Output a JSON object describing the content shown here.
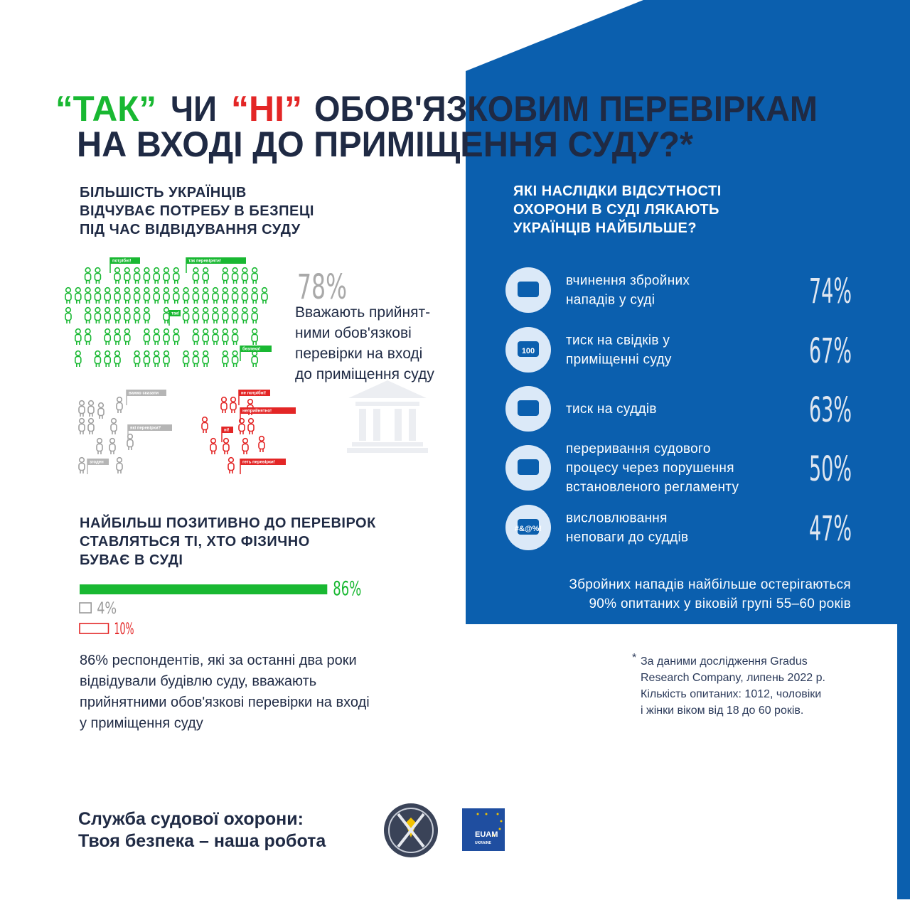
{
  "title": {
    "yes": "“ТАК”",
    "or": "ЧИ",
    "no": "“НІ”",
    "line1_rest": "ОБОВ'ЯЗКОВИМ ПЕРЕВІРКАМ",
    "line2": "НА ВХОДІ ДО ПРИМІЩЕННЯ СУДУ?*"
  },
  "left": {
    "heading": [
      "БІЛЬШІСТЬ УКРАЇНЦІВ",
      "ВІДЧУВАЄ ПОТРЕБУ В БЕЗПЕЦІ",
      "ПІД ЧАС ВІДВІДУВАННЯ СУДУ"
    ],
    "percent": "78%",
    "caption": [
      "Вважають прийнят-",
      "ними обов'язкові",
      "перевірки на вході",
      "до приміщення суду"
    ],
    "green_flags": [
      "потрібні!",
      "так перевіряти!",
      "так!",
      "безпека!"
    ],
    "gray_flags": [
      "важко сказати",
      "які перевірки?",
      "згоден"
    ],
    "red_flags": [
      "не потрібні!",
      "неприйнятно!",
      "ні!",
      "геть перевірки!"
    ]
  },
  "visitors": {
    "heading": [
      "НАЙБІЛЬШ ПОЗИТИВНО ДО ПЕРЕВІРОК",
      "СТАВЛЯТЬСЯ ТІ, ХТО ФІЗИЧНО",
      "БУВАЄ В СУДІ"
    ],
    "bars": {
      "values": [
        86,
        4,
        10
      ],
      "value_labels": [
        "86%",
        "4%",
        "10%"
      ],
      "colors": [
        "#19b832",
        "#9a9a9a",
        "#e32626"
      ]
    },
    "text": [
      "86% респондентів, які за останні два роки",
      "відвідували  будівлю суду, вважають",
      "прийнятними обов'язкові  перевірки на вході",
      "у приміщення суду"
    ]
  },
  "right": {
    "heading": [
      "ЯКІ НАСЛІДКИ ВІДСУТНОСТІ",
      "ОХОРОНИ В СУДІ ЛЯКАЮТЬ",
      "УКРАЇНЦІВ НАЙБІЛЬШЕ?"
    ],
    "items": [
      {
        "text": [
          "вчинення збройних",
          "нападів у суді"
        ],
        "percent": "74%"
      },
      {
        "text": [
          "тиск на свідків у",
          "приміщенні суду"
        ],
        "percent": "67%",
        "icon_text": "100"
      },
      {
        "text": [
          "тиск на суддів"
        ],
        "percent": "63%"
      },
      {
        "text": [
          "переривання судового",
          "процесу через порушення",
          "встановленого регламенту"
        ],
        "percent": "50%"
      },
      {
        "text": [
          "висловлювання",
          "неповаги до суддів"
        ],
        "percent": "47%",
        "icon_text": "#&@%!"
      }
    ],
    "note": [
      "Збройних нападів найбільше остерігаються",
      "90% опитаних у віковій групі 55–60 років"
    ]
  },
  "footnote": {
    "mark": "*",
    "lines": [
      "За даними дослідження Gradus",
      "Research Company, липень 2022 р.",
      "Кількість опитаних: 1012, чоловіки",
      "і жінки віком від 18 до 60 років."
    ]
  },
  "footer": {
    "slogan": [
      "Служба судової охорони:",
      "Твоя безпека – наша робота"
    ],
    "logo_text": [
      "EUAM",
      "UKRAINE"
    ]
  }
}
